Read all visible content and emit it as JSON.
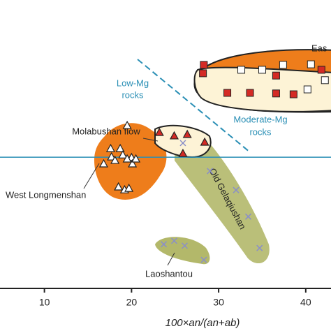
{
  "chart_data": {
    "type": "scatter",
    "x_label": "100×an/(an+ab)",
    "xlim": [
      4.9,
      42.9
    ],
    "xticks": [
      10,
      20,
      30,
      40
    ],
    "ylim": [
      0,
      100
    ],
    "hline": 45.5,
    "hline_color": "#2a8fb5",
    "annotations": {
      "low_mg": [
        "Low-Mg",
        "rocks"
      ],
      "moderate_mg": [
        "Moderate-Mg",
        "rocks"
      ],
      "east": "Eas"
    },
    "series": [
      {
        "name": "West Longmenshan",
        "marker": "triangle",
        "color": "#ffffff",
        "x": [
          19.5,
          17.6,
          18.7,
          19.0,
          20.0,
          19.5,
          17.7,
          16.8,
          18.1,
          20.1,
          18.5,
          19.2,
          19.7,
          20.5
        ],
        "y": [
          56.4,
          48.4,
          48.4,
          46.2,
          45.3,
          44.8,
          45.5,
          43.1,
          44.3,
          43.1,
          35.1,
          34.1,
          34.6,
          44.8
        ]
      },
      {
        "name": "Molabushan flow",
        "marker": "triangle",
        "color": "#d42a25",
        "x": [
          23.2,
          24.9,
          26.4,
          28.4,
          25.9
        ],
        "y": [
          54.0,
          52.8,
          53.3,
          50.6,
          46.7
        ]
      },
      {
        "marker": "square",
        "color": "#ffffff",
        "x": [
          32.6,
          35.0,
          37.4,
          40.6,
          40.2,
          42.2
        ],
        "y": [
          75.8,
          75.8,
          77.5,
          77.7,
          69.0,
          72.2
        ]
      },
      {
        "marker": "square",
        "color": "#d42a25",
        "x": [
          28.3,
          28.2,
          31.0,
          33.6,
          36.6,
          36.6,
          38.6,
          41.8
        ],
        "y": [
          77.5,
          74.6,
          67.8,
          67.8,
          67.6,
          73.8,
          67.3,
          75.8
        ]
      },
      {
        "name": "Old Gelaqiushan",
        "marker": "cross",
        "color": "#8a8fc9",
        "x": [
          25.9,
          29.0,
          32.0,
          33.4,
          34.7
        ],
        "y": [
          50.4,
          40.7,
          34.1,
          24.9,
          14.0
        ]
      },
      {
        "name": "Laoshantou",
        "marker": "cross",
        "color": "#8a8fc9",
        "x": [
          23.7,
          24.9,
          26.1,
          28.3
        ],
        "y": [
          15.3,
          16.5,
          14.8,
          9.9
        ]
      }
    ]
  }
}
